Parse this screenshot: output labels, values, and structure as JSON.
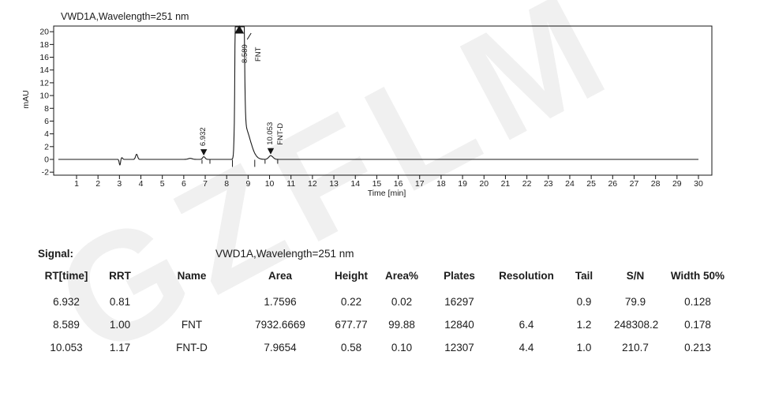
{
  "watermark": {
    "text": "GZFLM",
    "color": "#f0f0f0"
  },
  "colors": {
    "text": "#1c1c1c",
    "axis": "#141414",
    "trace": "#1a1a1a"
  },
  "chart_data": {
    "type": "line",
    "title": "VWD1A,Wavelength=251 nm",
    "xlabel": "Time [min]",
    "ylabel": "mAU",
    "xlim": [
      0,
      30.7
    ],
    "ylim": [
      -2.5,
      20.9
    ],
    "xticks": [
      1,
      2,
      3,
      4,
      5,
      6,
      7,
      8,
      9,
      10,
      11,
      12,
      13,
      14,
      15,
      16,
      17,
      18,
      19,
      20,
      21,
      22,
      23,
      24,
      25,
      26,
      27,
      28,
      29,
      30
    ],
    "yticks": [
      -2,
      0,
      2,
      4,
      6,
      8,
      10,
      12,
      14,
      16,
      18,
      20
    ],
    "grid": false,
    "legend": false,
    "peaks": [
      {
        "rt": 6.932,
        "height": 0.22,
        "width50": 0.128,
        "label": "6.932",
        "name": "",
        "marker": "down",
        "clipped": false
      },
      {
        "rt": 8.589,
        "height": 677.77,
        "width50": 0.178,
        "label": "8.589",
        "name": "FNT",
        "marker": "up",
        "clipped": true
      },
      {
        "rt": 10.053,
        "height": 0.58,
        "width50": 0.213,
        "label": "10.053",
        "name": "FNT-D",
        "marker": "down",
        "clipped": false
      }
    ],
    "baseline_events": [
      {
        "t": 3.02,
        "h": -0.9,
        "w": 0.07
      },
      {
        "t": 3.11,
        "h": 0.28,
        "w": 0.09
      },
      {
        "t": 3.8,
        "h": 0.8,
        "w": 0.11
      },
      {
        "t": 6.3,
        "h": 0.16,
        "w": 0.22
      }
    ],
    "integration_marks": [
      {
        "t": 6.85,
        "d": 5
      },
      {
        "t": 7.22,
        "d": 5
      },
      {
        "t": 8.27,
        "d": 9
      },
      {
        "t": 9.31,
        "d": 9
      },
      {
        "t": 9.79,
        "d": 5
      },
      {
        "t": 10.38,
        "d": 5
      }
    ]
  },
  "signal": {
    "label": "Signal:",
    "value": "VWD1A,Wavelength=251 nm"
  },
  "table": {
    "columns": [
      "RT[time]",
      "RRT",
      "Name",
      "Area",
      "Height",
      "Area%",
      "Plates",
      "Resolution",
      "Tail",
      "S/N",
      "Width 50%"
    ],
    "rows": [
      [
        "6.932",
        "0.81",
        "",
        "1.7596",
        "0.22",
        "0.02",
        "16297",
        "",
        "0.9",
        "79.9",
        "0.128"
      ],
      [
        "8.589",
        "1.00",
        "FNT",
        "7932.6669",
        "677.77",
        "99.88",
        "12840",
        "6.4",
        "1.2",
        "248308.2",
        "0.178"
      ],
      [
        "10.053",
        "1.17",
        "FNT-D",
        "7.9654",
        "0.58",
        "0.10",
        "12307",
        "4.4",
        "1.0",
        "210.7",
        "0.213"
      ]
    ]
  }
}
